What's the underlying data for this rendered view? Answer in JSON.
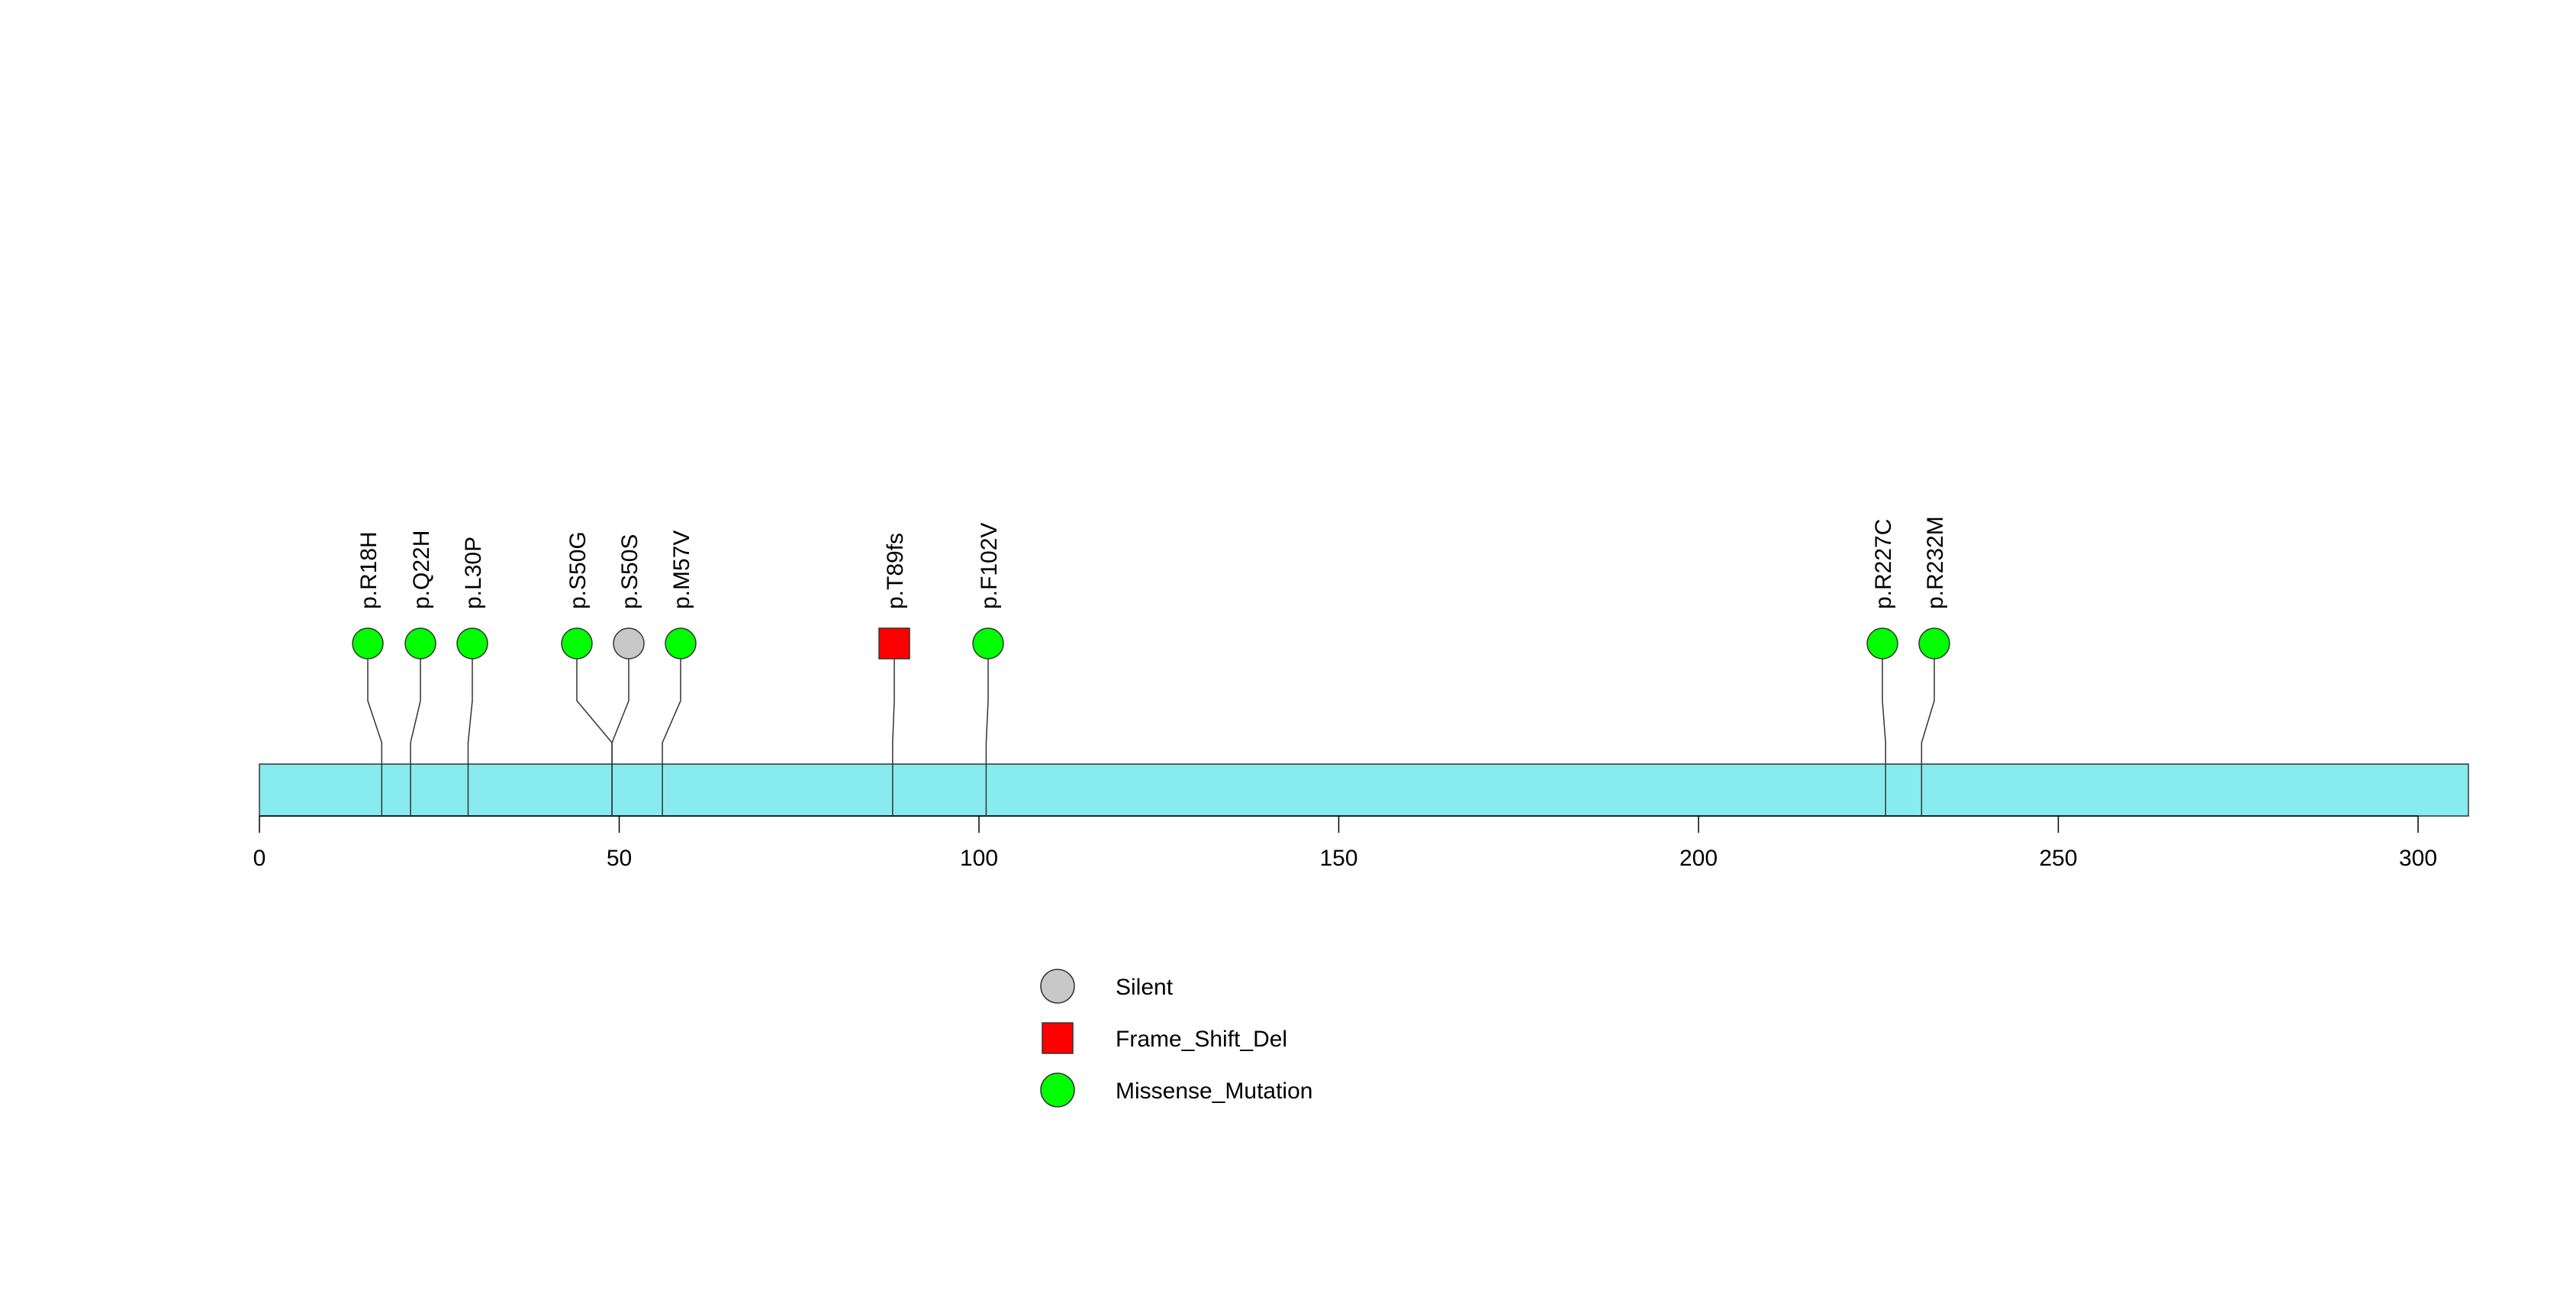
{
  "chart_data": {
    "type": "lollipop",
    "title": "",
    "xlabel": "",
    "ylabel": "",
    "xlim": [
      0,
      307
    ],
    "x_ticks": [
      0,
      50,
      100,
      150,
      200,
      250,
      300
    ],
    "protein_length": 307,
    "domain_color": "#88EBF0",
    "mutations": [
      {
        "label": "p.R18H",
        "position": 17,
        "class": "Missense_Mutation"
      },
      {
        "label": "p.Q22H",
        "position": 21,
        "class": "Missense_Mutation"
      },
      {
        "label": "p.L30P",
        "position": 29,
        "class": "Missense_Mutation"
      },
      {
        "label": "p.S50G",
        "position": 49,
        "class": "Missense_Mutation"
      },
      {
        "label": "p.S50S",
        "position": 49,
        "class": "Silent"
      },
      {
        "label": "p.M57V",
        "position": 56,
        "class": "Missense_Mutation"
      },
      {
        "label": "p.T89fs",
        "position": 88,
        "class": "Frame_Shift_Del"
      },
      {
        "label": "p.F102V",
        "position": 101,
        "class": "Missense_Mutation"
      },
      {
        "label": "p.R227C",
        "position": 226,
        "class": "Missense_Mutation"
      },
      {
        "label": "p.R232M",
        "position": 231,
        "class": "Missense_Mutation"
      }
    ],
    "legend": [
      {
        "label": "Silent",
        "shape": "circle",
        "color": "#C8C8C8"
      },
      {
        "label": "Frame_Shift_Del",
        "shape": "square",
        "color": "#FF0000"
      },
      {
        "label": "Missense_Mutation",
        "shape": "circle",
        "color": "#00FF00"
      }
    ],
    "class_colors": {
      "Silent": "#C8C8C8",
      "Frame_Shift_Del": "#FF0000",
      "Missense_Mutation": "#00FF00"
    }
  }
}
